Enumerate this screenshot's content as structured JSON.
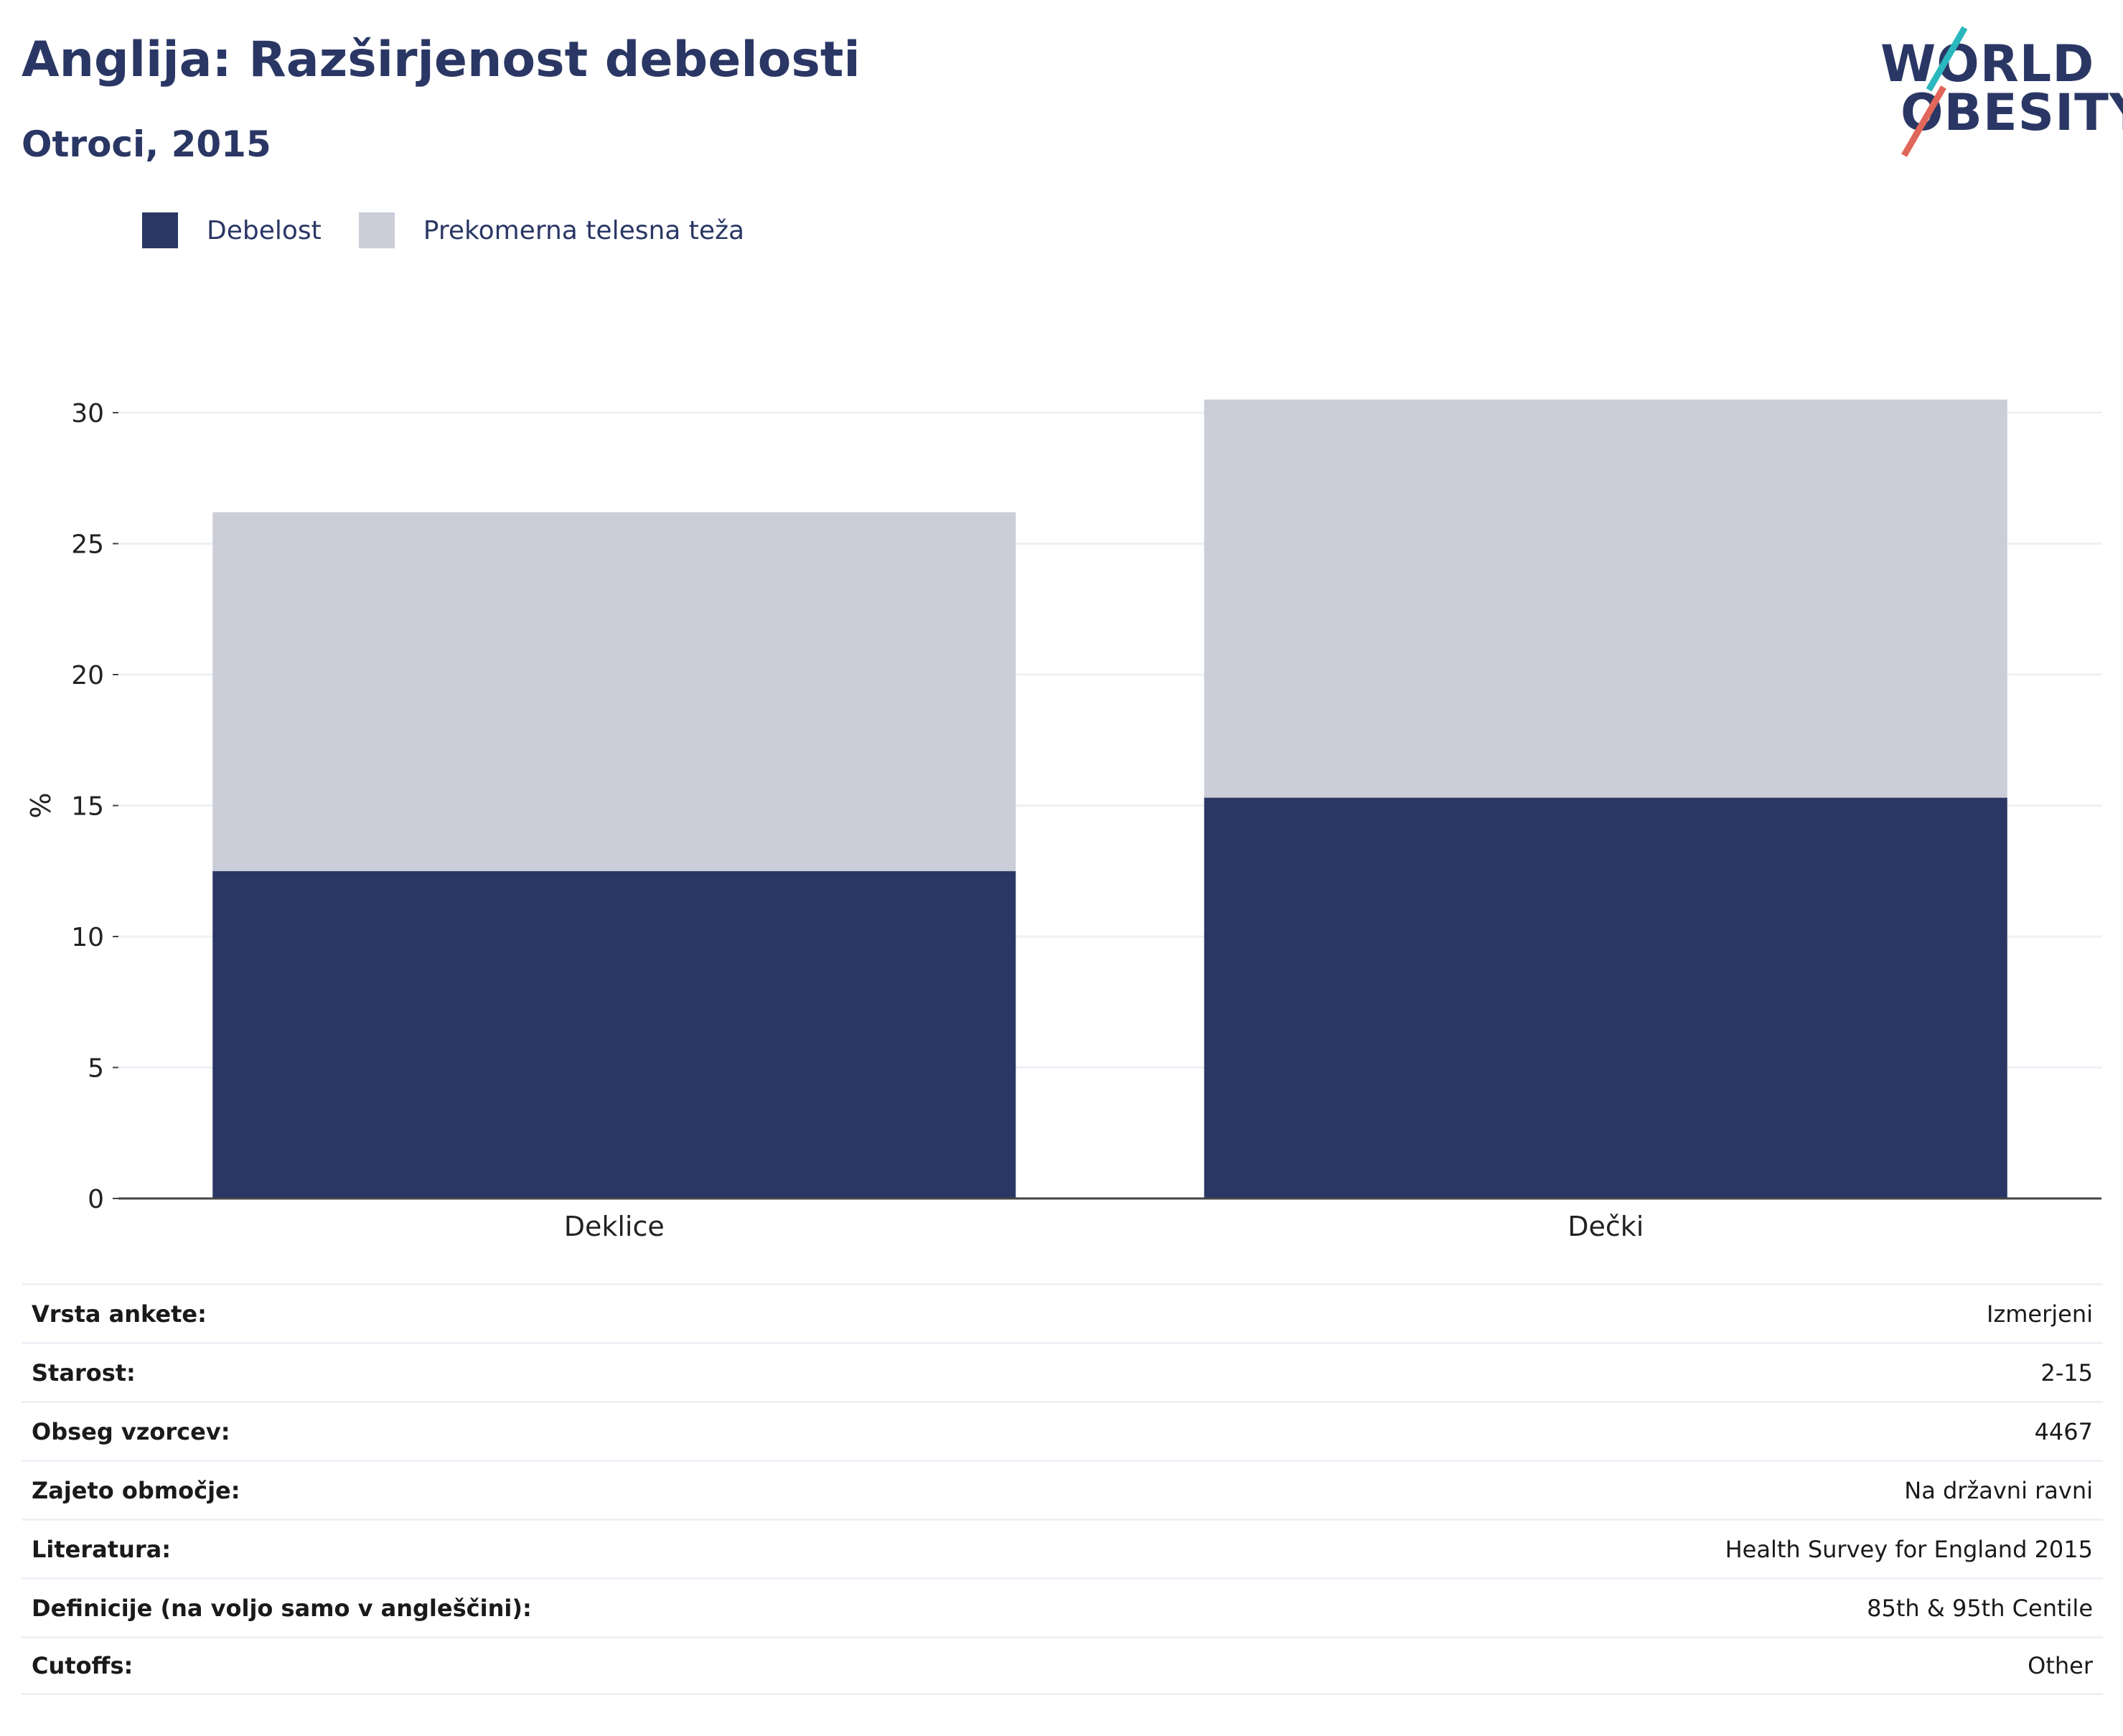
{
  "title": "Anglija: Razširjenost debelosti",
  "subtitle": "Otroci, 2015",
  "logo": {
    "line1": "WORLD",
    "line2": "OBESITY"
  },
  "colors": {
    "obesity": "#2a3764",
    "overweight": "#cbcdd8",
    "text": "#2a3764",
    "grid": "#eef0f4",
    "axis": "#444444"
  },
  "chart_data": {
    "type": "bar",
    "stacked": true,
    "categories": [
      "Deklice",
      "Dečki"
    ],
    "series": [
      {
        "name": "Debelost",
        "values": [
          12.5,
          15.3
        ],
        "color": "#2a3764"
      },
      {
        "name": "Prekomerna telesna teža",
        "values": [
          13.7,
          15.2
        ],
        "color": "#cbcdd8"
      }
    ],
    "ylabel": "%",
    "ylim": [
      0,
      30.5
    ],
    "yticks": [
      0,
      5,
      10,
      15,
      20,
      25,
      30
    ],
    "grid": true,
    "legend_position": "top-left"
  },
  "info": [
    {
      "label": "Vrsta ankete:",
      "value": "Izmerjeni"
    },
    {
      "label": "Starost:",
      "value": "2-15"
    },
    {
      "label": "Obseg vzorcev:",
      "value": "4467"
    },
    {
      "label": "Zajeto območje:",
      "value": "Na državni ravni"
    },
    {
      "label": "Literatura:",
      "value": "Health Survey for England 2015"
    },
    {
      "label": "Definicije (na voljo samo v angleščini):",
      "value": "85th & 95th Centile"
    },
    {
      "label": "Cutoffs:",
      "value": "Other"
    }
  ]
}
